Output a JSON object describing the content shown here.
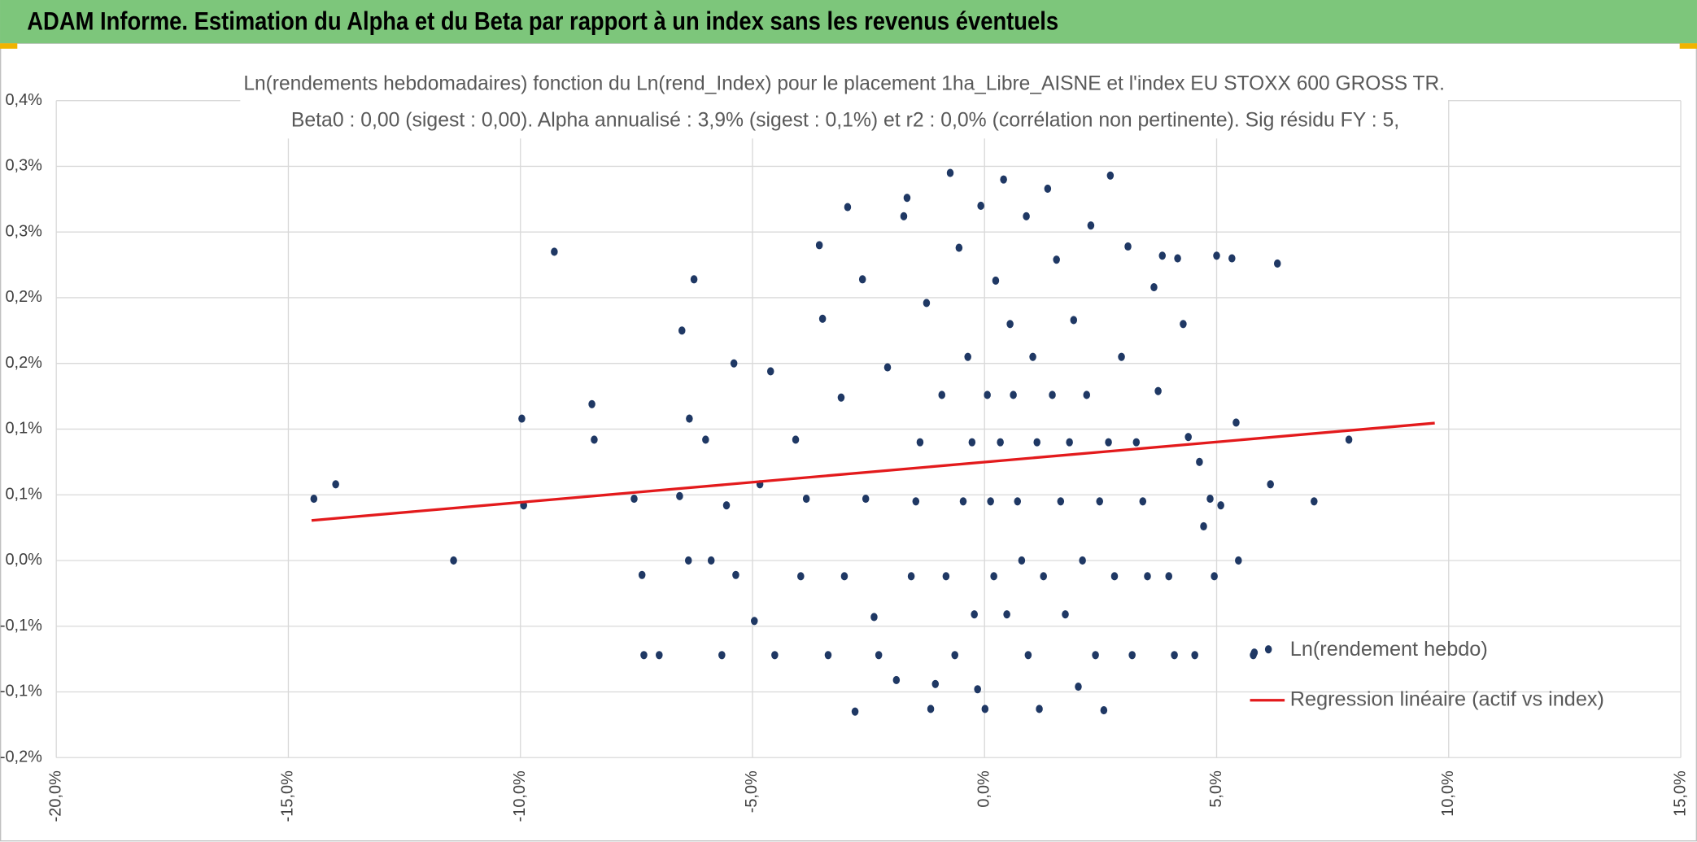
{
  "header": {
    "title": "ADAM Informe. Estimation du Alpha et du Beta par rapport à un index sans les revenus éventuels"
  },
  "chart_data": {
    "type": "scatter",
    "title": "Ln(rendements hebdomadaires) fonction du Ln(rend_Index) pour le placement 1ha_Libre_AISNE et l'index EU STOXX 600 GROSS TR.",
    "subtitle": "Beta0 : 0,00 (sigest : 0,00). Alpha annualisé : 3,9% (sigest : 0,1%) et r2 : 0,0% (corrélation non pertinente). Sig résidu FY : 5,",
    "xlim": [
      -20,
      15
    ],
    "xticks": [
      {
        "value": -20,
        "label": "-20,0%"
      },
      {
        "value": -15,
        "label": "-15,0%"
      },
      {
        "value": -10,
        "label": "-10,0%"
      },
      {
        "value": -5,
        "label": "-5,0%"
      },
      {
        "value": 0,
        "label": "0,0%"
      },
      {
        "value": 5,
        "label": "5,0%"
      },
      {
        "value": 10,
        "label": "10,0%"
      },
      {
        "value": 15,
        "label": "15,0%"
      }
    ],
    "ylim": [
      -0.15,
      0.35
    ],
    "yticks": [
      {
        "value": 0.35,
        "label": "0,4%"
      },
      {
        "value": 0.3,
        "label": "0,3%"
      },
      {
        "value": 0.25,
        "label": "0,3%"
      },
      {
        "value": 0.2,
        "label": "0,2%"
      },
      {
        "value": 0.15,
        "label": "0,2%"
      },
      {
        "value": 0.1,
        "label": "0,1%"
      },
      {
        "value": 0.05,
        "label": "0,1%"
      },
      {
        "value": 0,
        "label": "0,0%"
      },
      {
        "value": -0.05,
        "label": "-0,1%"
      },
      {
        "value": -0.1,
        "label": "-0,1%"
      },
      {
        "value": -0.15,
        "label": "-0,2%"
      }
    ],
    "grid": true,
    "legend": "lower right",
    "series": [
      {
        "name": "Ln(rendement hebdo)",
        "type": "scatter",
        "color": "#1f3864",
        "x": [
          -14.45,
          -13.98,
          -11.44,
          -9.97,
          -9.93,
          -9.27,
          -8.46,
          -8.41,
          -7.55,
          -7.38,
          -7.34,
          -7.01,
          -6.57,
          -6.52,
          -6.38,
          -6.36,
          -6.26,
          -6.01,
          -5.89,
          -5.66,
          -5.56,
          -5.4,
          -5.36,
          -4.96,
          -4.84,
          -4.61,
          -4.52,
          -4.07,
          -3.96,
          -3.84,
          -3.56,
          -3.49,
          -3.37,
          -3.09,
          -3.02,
          -2.95,
          -2.79,
          -2.63,
          -2.56,
          -2.38,
          -2.28,
          -2.09,
          -1.9,
          -1.74,
          -1.67,
          -1.58,
          -1.48,
          -1.39,
          -1.25,
          -1.16,
          -1.06,
          -0.92,
          -0.83,
          -0.74,
          -0.64,
          -0.55,
          -0.46,
          -0.36,
          -0.27,
          -0.22,
          -0.15,
          -0.08,
          0.01,
          0.06,
          0.13,
          0.2,
          0.24,
          0.34,
          0.41,
          0.48,
          0.55,
          0.62,
          0.71,
          0.8,
          0.9,
          0.94,
          1.04,
          1.13,
          1.18,
          1.27,
          1.36,
          1.46,
          1.55,
          1.64,
          1.74,
          1.83,
          1.92,
          2.02,
          2.11,
          2.2,
          2.29,
          2.39,
          2.48,
          2.57,
          2.67,
          2.71,
          2.8,
          2.95,
          3.09,
          3.18,
          3.27,
          3.41,
          3.51,
          3.65,
          3.74,
          3.83,
          3.97,
          4.09,
          4.16,
          4.28,
          4.39,
          4.53,
          4.63,
          4.72,
          4.86,
          4.95,
          5.0,
          5.09,
          5.33,
          5.42,
          5.47,
          5.79,
          6.16,
          6.31,
          7.1,
          7.85
        ],
        "values": [
          0.047,
          0.058,
          0.0,
          0.108,
          0.042,
          0.235,
          0.119,
          0.092,
          0.047,
          -0.011,
          -0.072,
          -0.072,
          0.049,
          0.175,
          0.0,
          0.108,
          0.214,
          0.092,
          0.0,
          -0.072,
          0.042,
          0.15,
          -0.011,
          -0.046,
          0.058,
          0.144,
          -0.072,
          0.092,
          -0.012,
          0.047,
          0.24,
          0.184,
          -0.072,
          0.124,
          -0.012,
          0.269,
          -0.115,
          0.214,
          0.047,
          -0.043,
          -0.072,
          0.147,
          -0.091,
          0.262,
          0.276,
          -0.012,
          0.045,
          0.09,
          0.196,
          -0.113,
          -0.094,
          0.126,
          -0.012,
          0.295,
          -0.072,
          0.238,
          0.045,
          0.155,
          0.09,
          -0.041,
          -0.098,
          0.27,
          -0.113,
          0.126,
          0.045,
          -0.012,
          0.213,
          0.09,
          0.29,
          -0.041,
          0.18,
          0.126,
          0.045,
          0.0,
          0.262,
          -0.072,
          0.155,
          0.09,
          -0.113,
          -0.012,
          0.283,
          0.126,
          0.229,
          0.045,
          -0.041,
          0.09,
          0.183,
          -0.096,
          0.0,
          0.126,
          0.255,
          -0.072,
          0.045,
          -0.114,
          0.09,
          0.293,
          -0.012,
          0.155,
          0.239,
          -0.072,
          0.09,
          0.045,
          -0.012,
          0.208,
          0.129,
          0.232,
          -0.012,
          -0.072,
          0.23,
          0.18,
          0.094,
          -0.072,
          0.075,
          0.026,
          0.047,
          -0.012,
          0.232,
          0.042,
          0.23,
          0.105,
          0.0,
          -0.072,
          0.058,
          0.226,
          0.045,
          0.092
        ]
      },
      {
        "name": "Regression linéaire (actif vs index)",
        "type": "line",
        "color": "#e31a1c",
        "x": [
          -14.5,
          9.7
        ],
        "values": [
          0.0305,
          0.1046
        ]
      }
    ]
  }
}
